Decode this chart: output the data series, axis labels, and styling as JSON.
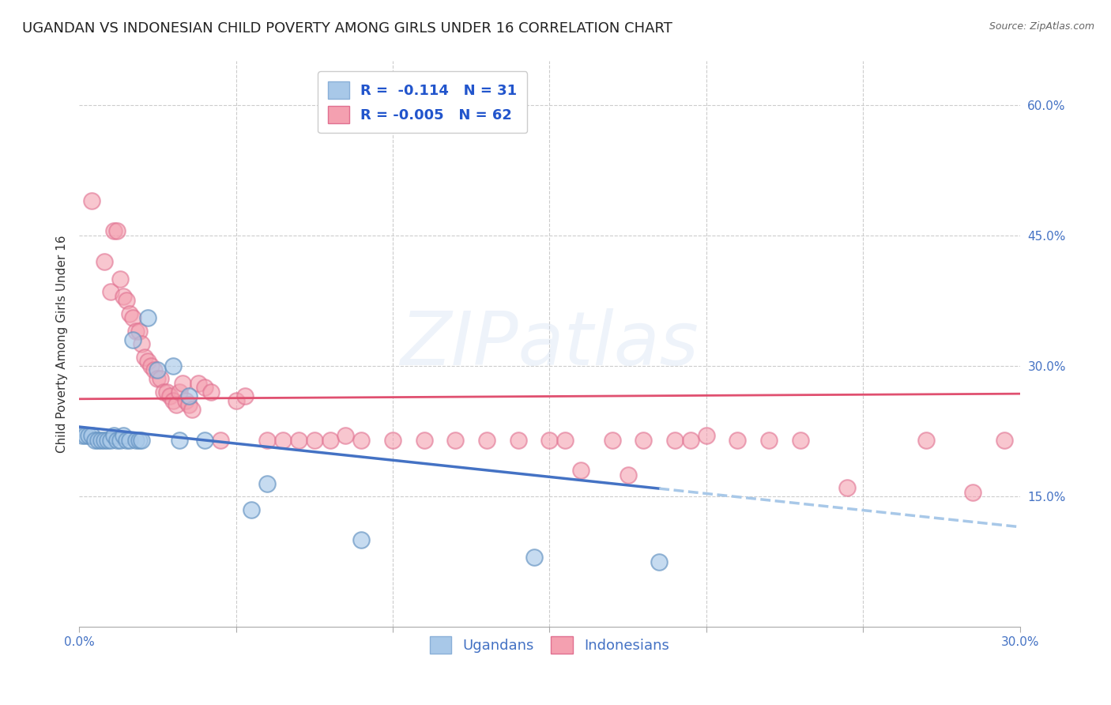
{
  "title": "UGANDAN VS INDONESIAN CHILD POVERTY AMONG GIRLS UNDER 16 CORRELATION CHART",
  "source": "Source: ZipAtlas.com",
  "ylabel": "Child Poverty Among Girls Under 16",
  "xlim": [
    0.0,
    0.3
  ],
  "ylim": [
    0.0,
    0.65
  ],
  "xticks": [
    0.0,
    0.05,
    0.1,
    0.15,
    0.2,
    0.25,
    0.3
  ],
  "xtick_labels": [
    "0.0%",
    "",
    "",
    "",
    "",
    "",
    "30.0%"
  ],
  "yticks_right": [
    0.15,
    0.3,
    0.45,
    0.6
  ],
  "ytick_right_labels": [
    "15.0%",
    "30.0%",
    "45.0%",
    "60.0%"
  ],
  "ugandan_color": "#6baed6",
  "indonesian_color": "#f08080",
  "ugandan_trend_color": "#4472c4",
  "ugandan_trend_dash_color": "#a8c8e8",
  "indonesian_trend_color": "#e05070",
  "background_color": "#ffffff",
  "grid_color": "#cccccc",
  "watermark": "ZIPatlas",
  "ugandan_points": [
    [
      0.001,
      0.22
    ],
    [
      0.002,
      0.22
    ],
    [
      0.003,
      0.22
    ],
    [
      0.004,
      0.22
    ],
    [
      0.005,
      0.215
    ],
    [
      0.006,
      0.215
    ],
    [
      0.007,
      0.215
    ],
    [
      0.008,
      0.215
    ],
    [
      0.009,
      0.215
    ],
    [
      0.01,
      0.215
    ],
    [
      0.011,
      0.22
    ],
    [
      0.012,
      0.215
    ],
    [
      0.013,
      0.215
    ],
    [
      0.014,
      0.22
    ],
    [
      0.015,
      0.215
    ],
    [
      0.016,
      0.215
    ],
    [
      0.017,
      0.33
    ],
    [
      0.018,
      0.215
    ],
    [
      0.019,
      0.215
    ],
    [
      0.02,
      0.215
    ],
    [
      0.022,
      0.355
    ],
    [
      0.025,
      0.295
    ],
    [
      0.03,
      0.3
    ],
    [
      0.032,
      0.215
    ],
    [
      0.035,
      0.265
    ],
    [
      0.04,
      0.215
    ],
    [
      0.055,
      0.135
    ],
    [
      0.06,
      0.165
    ],
    [
      0.09,
      0.1
    ],
    [
      0.145,
      0.08
    ],
    [
      0.185,
      0.075
    ]
  ],
  "indonesian_points": [
    [
      0.004,
      0.49
    ],
    [
      0.008,
      0.42
    ],
    [
      0.01,
      0.385
    ],
    [
      0.011,
      0.455
    ],
    [
      0.012,
      0.455
    ],
    [
      0.013,
      0.4
    ],
    [
      0.014,
      0.38
    ],
    [
      0.015,
      0.375
    ],
    [
      0.016,
      0.36
    ],
    [
      0.017,
      0.355
    ],
    [
      0.018,
      0.34
    ],
    [
      0.019,
      0.34
    ],
    [
      0.02,
      0.325
    ],
    [
      0.021,
      0.31
    ],
    [
      0.022,
      0.305
    ],
    [
      0.023,
      0.3
    ],
    [
      0.024,
      0.295
    ],
    [
      0.025,
      0.285
    ],
    [
      0.026,
      0.285
    ],
    [
      0.027,
      0.27
    ],
    [
      0.028,
      0.27
    ],
    [
      0.029,
      0.265
    ],
    [
      0.03,
      0.26
    ],
    [
      0.031,
      0.255
    ],
    [
      0.032,
      0.27
    ],
    [
      0.033,
      0.28
    ],
    [
      0.034,
      0.26
    ],
    [
      0.035,
      0.255
    ],
    [
      0.036,
      0.25
    ],
    [
      0.038,
      0.28
    ],
    [
      0.04,
      0.275
    ],
    [
      0.042,
      0.27
    ],
    [
      0.045,
      0.215
    ],
    [
      0.05,
      0.26
    ],
    [
      0.053,
      0.265
    ],
    [
      0.06,
      0.215
    ],
    [
      0.065,
      0.215
    ],
    [
      0.07,
      0.215
    ],
    [
      0.075,
      0.215
    ],
    [
      0.08,
      0.215
    ],
    [
      0.085,
      0.22
    ],
    [
      0.09,
      0.215
    ],
    [
      0.1,
      0.215
    ],
    [
      0.11,
      0.215
    ],
    [
      0.12,
      0.215
    ],
    [
      0.13,
      0.215
    ],
    [
      0.14,
      0.215
    ],
    [
      0.15,
      0.215
    ],
    [
      0.155,
      0.215
    ],
    [
      0.16,
      0.18
    ],
    [
      0.17,
      0.215
    ],
    [
      0.175,
      0.175
    ],
    [
      0.18,
      0.215
    ],
    [
      0.19,
      0.215
    ],
    [
      0.195,
      0.215
    ],
    [
      0.2,
      0.22
    ],
    [
      0.21,
      0.215
    ],
    [
      0.22,
      0.215
    ],
    [
      0.23,
      0.215
    ],
    [
      0.245,
      0.16
    ],
    [
      0.27,
      0.215
    ],
    [
      0.285,
      0.155
    ],
    [
      0.295,
      0.215
    ]
  ],
  "ugandan_trend_x": [
    0.0,
    0.3
  ],
  "ugandan_trend_y": [
    0.23,
    0.115
  ],
  "ugandan_trend_solid_end": 0.185,
  "indonesian_trend_x": [
    0.0,
    0.3
  ],
  "indonesian_trend_y": [
    0.262,
    0.268
  ],
  "title_fontsize": 13,
  "axis_label_fontsize": 11,
  "tick_fontsize": 11,
  "legend_fontsize": 13
}
